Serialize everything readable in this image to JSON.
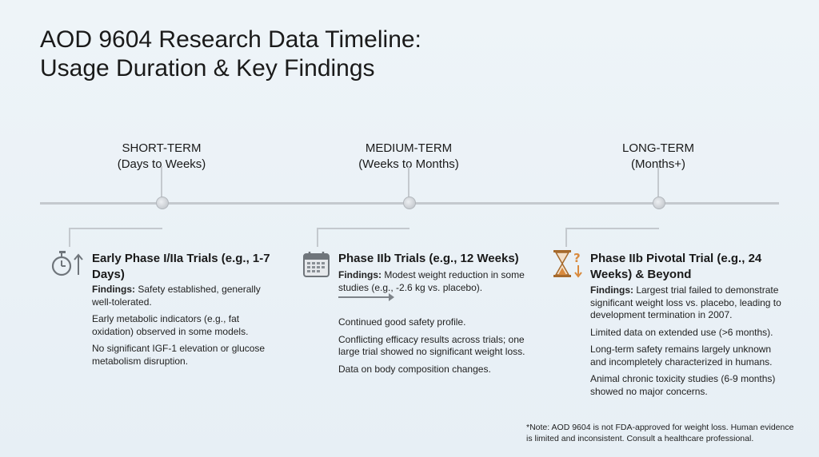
{
  "title": {
    "line1": "AOD 9604 Research Data Timeline:",
    "line2": "Usage Duration & Key Findings"
  },
  "phases": [
    {
      "heading": "SHORT-TERM",
      "subheading": "(Days to Weeks)",
      "icon": "stopwatch-arrow-up-icon",
      "card_title_line1": "Early Phase I/IIa Trials (e.g., 1-7",
      "card_title_line2": "Days)",
      "findings_label": "Findings:",
      "findings_text": " Safety established, generally well-tolerated.",
      "items": [
        "Early metabolic indicators (e.g., fat oxidation) observed in some models.",
        "No significant IGF-1 elevation or glucose metabolism disruption."
      ]
    },
    {
      "heading": "MEDIUM-TERM",
      "subheading": "(Weeks to Months)",
      "icon": "calendar-icon",
      "card_title_line1": "Phase IIb Trials (e.g., 12 Weeks)",
      "card_title_line2": "",
      "findings_label": "Findings:",
      "findings_text": " Modest weight reduction in some studies (e.g., -2.6 kg vs. placebo).",
      "items": [
        "Continued good safety profile.",
        "Conflicting efficacy results across trials; one large trial showed no significant weight loss.",
        "Data on body composition changes."
      ]
    },
    {
      "heading": "LONG-TERM",
      "subheading": "(Months+)",
      "icon": "hourglass-question-icon",
      "card_title_line1": "Phase IIb Pivotal Trial (e.g., 24",
      "card_title_line2": "Weeks) & Beyond",
      "findings_label": "Findings:",
      "findings_text": " Largest trial failed to demonstrate significant weight loss vs. placebo, leading to development termination in 2007.",
      "items": [
        "Limited data on extended use (>6 months).",
        "Long-term safety remains largely unknown and incompletely characterized in humans.",
        "Animal chronic toxicity studies (6-9 months) showed no major concerns."
      ]
    }
  ],
  "note": {
    "line1": "*Note: AOD 9604 is not FDA-approved for weight loss. Human evidence",
    "line2": "is limited and inconsistent. Consult a healthcare professional."
  },
  "colors": {
    "background": "#eaf1f6",
    "axis": "#c4c9ce",
    "icon_gray": "#6f757b",
    "hourglass_orange": "#d98a3d"
  }
}
